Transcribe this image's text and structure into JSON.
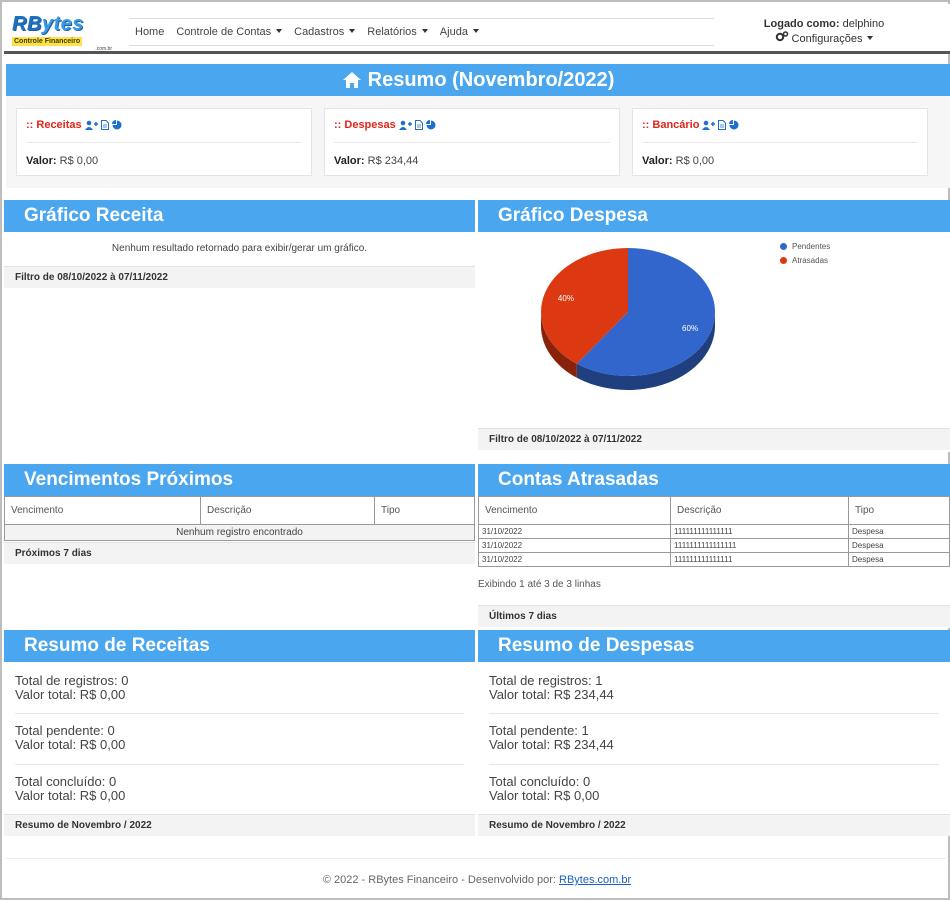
{
  "brand": {
    "logo_main_1": "RB",
    "logo_main_2": "ytes",
    "logo_sub": "Controle Financeiro",
    "logo_domain": ".com.br"
  },
  "menu": [
    {
      "label": "Home",
      "dropdown": false
    },
    {
      "label": "Controle de Contas",
      "dropdown": true
    },
    {
      "label": "Cadastros",
      "dropdown": true
    },
    {
      "label": "Relatórios",
      "dropdown": true
    },
    {
      "label": "Ajuda",
      "dropdown": true
    }
  ],
  "user": {
    "logged_label": "Logado como:",
    "username": "delphino",
    "settings_label": "Configurações"
  },
  "resumo": {
    "title": "Resumo (Novembro/2022)",
    "cards": [
      {
        "title": ":: Receitas",
        "value_label": "Valor:",
        "value": "R$ 0,00"
      },
      {
        "title": ":: Despesas",
        "value_label": "Valor:",
        "value": "R$ 234,44"
      },
      {
        "title": ":: Bancário",
        "value_label": "Valor:",
        "value": "R$ 0,00"
      }
    ]
  },
  "grafico_receita": {
    "title": "Gráfico Receita",
    "message": "Nenhum resultado retornado para exibir/gerar um gráfico.",
    "footer": "Filtro de 08/10/2022 à 07/11/2022"
  },
  "grafico_despesa": {
    "title": "Gráfico Despesa",
    "footer": "Filtro de 08/10/2022 à 07/11/2022"
  },
  "chart_data": {
    "type": "pie",
    "title": "",
    "series": [
      {
        "name": "Pendentes",
        "value": 60,
        "label": "60%",
        "color": "#3366cc"
      },
      {
        "name": "Atrasadas",
        "value": 40,
        "label": "40%",
        "color": "#dc3912"
      }
    ],
    "legend": "top-right"
  },
  "vencimentos": {
    "title": "Vencimentos Próximos",
    "headers": [
      "Vencimento",
      "Descrição",
      "Tipo"
    ],
    "empty": "Nenhum registro encontrado",
    "footer": "Próximos 7 dias"
  },
  "atrasadas": {
    "title": "Contas Atrasadas",
    "headers": [
      "Vencimento",
      "Descrição",
      "Tipo"
    ],
    "rows": [
      [
        "31/10/2022",
        "111111111111111",
        "Despesa"
      ],
      [
        "31/10/2022",
        "1111111111111111",
        "Despesa"
      ],
      [
        "31/10/2022",
        "111111111111111",
        "Despesa"
      ]
    ],
    "info": "Exibindo 1 até 3 de 3 linhas",
    "footer": "Últimos 7 dias"
  },
  "resumo_receitas": {
    "title": "Resumo de Receitas",
    "total_registros": "Total de registros: 0",
    "valor_total": "Valor total: R$ 0,00",
    "total_pendente": "Total pendente: 0",
    "valor_pendente": "Valor total: R$ 0,00",
    "total_concluido": "Total concluído: 0",
    "valor_concluido": "Valor total: R$ 0,00",
    "footer": "Resumo de Novembro / 2022"
  },
  "resumo_despesas": {
    "title": "Resumo de Despesas",
    "total_registros": "Total de registros: 1",
    "valor_total": "Valor total: R$ 234,44",
    "total_pendente": "Total pendente: 1",
    "valor_pendente": "Valor total: R$ 234,44",
    "total_concluido": "Total concluído: 0",
    "valor_concluido": "Valor total: R$ 0,00",
    "footer": "Resumo de Novembro / 2022"
  },
  "footer": {
    "text": "© 2022 - RBytes Financeiro - Desenvolvido por:",
    "link": "RBytes.com.br"
  }
}
